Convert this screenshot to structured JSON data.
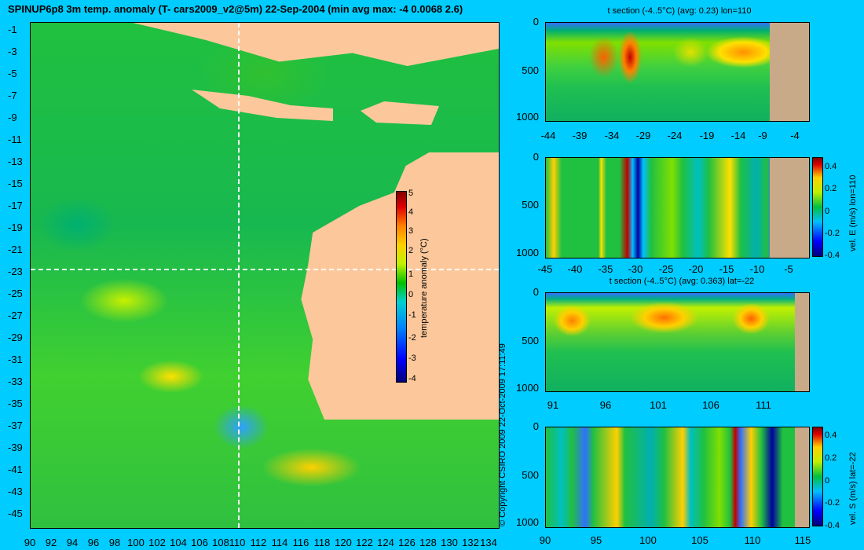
{
  "title": "SPINUP6p8 3m temp. anomaly (T- cars2009_v2@5m) 22-Sep-2004 (min avg max: -4 0.0068 2.6)",
  "map": {
    "y_ticks": [
      "-1",
      "-3",
      "-5",
      "-7",
      "-9",
      "-11",
      "-13",
      "-15",
      "-17",
      "-19",
      "-21",
      "-23",
      "-25",
      "-27",
      "-29",
      "-31",
      "-33",
      "-35",
      "-37",
      "-39",
      "-41",
      "-43",
      "-45"
    ],
    "x_ticks": [
      "90",
      "92",
      "94",
      "96",
      "98",
      "100",
      "102",
      "104",
      "106",
      "108",
      "110",
      "112",
      "114",
      "116",
      "118",
      "120",
      "122",
      "124",
      "126",
      "128",
      "130",
      "132",
      "134"
    ],
    "colorbar": {
      "ticks": [
        "5",
        "4",
        "3",
        "2",
        "1",
        "0",
        "-1",
        "-2",
        "-3",
        "-4"
      ],
      "label": "temperature anomaly (°C)"
    },
    "copyright": "© Copyright CSIRO 2009  22-Oct-2009 17:11:49"
  },
  "panels": [
    {
      "title": "t section (-4..5°C) (avg: 0.23) lon=110",
      "y_ticks": [
        "0",
        "500",
        "1000"
      ],
      "x_ticks": [
        "-44",
        "-39",
        "-34",
        "-29",
        "-24",
        "-19",
        "-14",
        "-9",
        "-4"
      ]
    },
    {
      "title": "",
      "y_ticks": [
        "0",
        "500",
        "1000"
      ],
      "x_ticks": [
        "-45",
        "-40",
        "-35",
        "-30",
        "-25",
        "-20",
        "-15",
        "-10",
        "-5"
      ],
      "colorbar": {
        "ticks": [
          "0.4",
          "0.2",
          "0",
          "-0.2",
          "-0.4"
        ],
        "label": "vel. E (m/s) lon=110"
      }
    },
    {
      "title": "t section (-4..5°C) (avg: 0.363) lat=-22",
      "y_ticks": [
        "0",
        "500",
        "1000"
      ],
      "x_ticks": [
        "91",
        "96",
        "101",
        "106",
        "111"
      ]
    },
    {
      "title": "",
      "y_ticks": [
        "0",
        "500",
        "1000"
      ],
      "x_ticks": [
        "90",
        "95",
        "100",
        "105",
        "110",
        "115"
      ],
      "colorbar": {
        "ticks": [
          "0.4",
          "0.2",
          "0",
          "-0.2",
          "-0.4"
        ],
        "label": "vel. S (m/s) lat=-22"
      }
    }
  ]
}
